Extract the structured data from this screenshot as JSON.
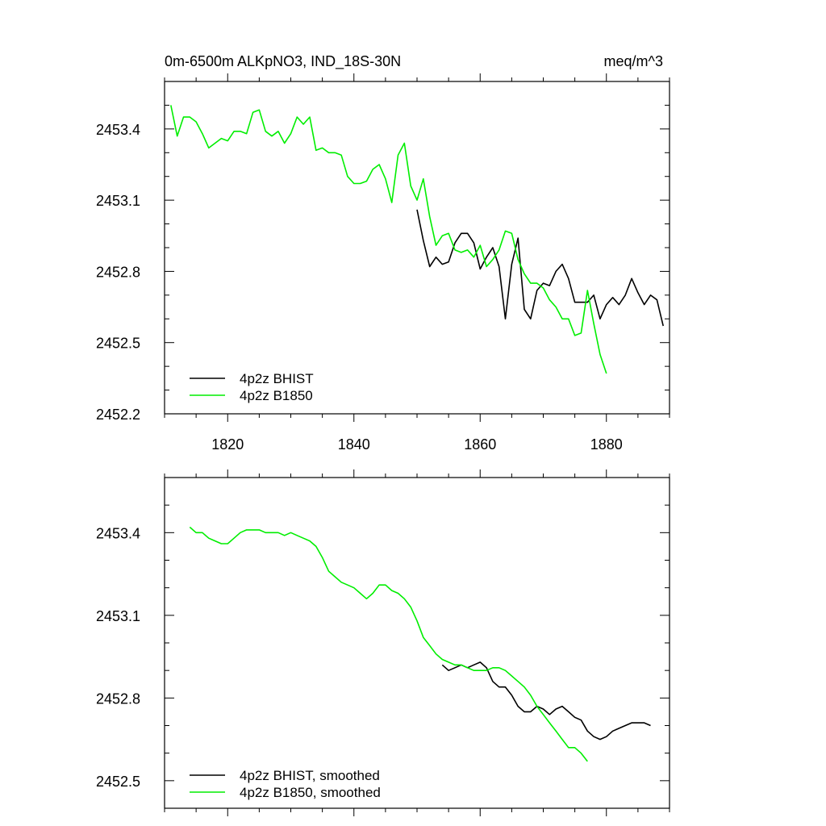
{
  "colors": {
    "bhist": "#000000",
    "b1850": "#00ee00"
  },
  "chart_data": [
    {
      "type": "line",
      "title": "0m-6500m ALKpNO3, IND_18S-30N",
      "units": "meq/m^3",
      "xlim": [
        1810,
        1890
      ],
      "ylim": [
        2452.2,
        2453.6
      ],
      "x_ticks": [
        1820,
        1840,
        1860,
        1880
      ],
      "x_tick_labels": [
        "1820",
        "1840",
        "1860",
        "1880"
      ],
      "y_ticks": [
        2452.2,
        2452.5,
        2452.8,
        2453.1,
        2453.4
      ],
      "y_tick_labels": [
        "2452.2",
        "2452.5",
        "2452.8",
        "2453.1",
        "2453.4"
      ],
      "legend_position": "bottom-left",
      "series": [
        {
          "name": "4p2z BHIST",
          "color": "#000000",
          "x": [
            1850,
            1851,
            1852,
            1853,
            1854,
            1855,
            1856,
            1857,
            1858,
            1859,
            1860,
            1861,
            1862,
            1863,
            1864,
            1865,
            1866,
            1867,
            1868,
            1869,
            1870,
            1871,
            1872,
            1873,
            1874,
            1875,
            1876,
            1877,
            1878,
            1879,
            1880,
            1881,
            1882,
            1883,
            1884,
            1885,
            1886,
            1887,
            1888,
            1889
          ],
          "y": [
            2453.06,
            2452.93,
            2452.82,
            2452.86,
            2452.83,
            2452.84,
            2452.92,
            2452.96,
            2452.96,
            2452.92,
            2452.81,
            2452.86,
            2452.9,
            2452.82,
            2452.6,
            2452.83,
            2452.94,
            2452.64,
            2452.6,
            2452.72,
            2452.75,
            2452.74,
            2452.8,
            2452.83,
            2452.77,
            2452.67,
            2452.67,
            2452.67,
            2452.7,
            2452.6,
            2452.66,
            2452.69,
            2452.66,
            2452.7,
            2452.77,
            2452.71,
            2452.66,
            2452.7,
            2452.68,
            2452.57
          ]
        },
        {
          "name": "4p2z B1850",
          "color": "#00ee00",
          "x": [
            1811,
            1812,
            1813,
            1814,
            1815,
            1816,
            1817,
            1818,
            1819,
            1820,
            1821,
            1822,
            1823,
            1824,
            1825,
            1826,
            1827,
            1828,
            1829,
            1830,
            1831,
            1832,
            1833,
            1834,
            1835,
            1836,
            1837,
            1838,
            1839,
            1840,
            1841,
            1842,
            1843,
            1844,
            1845,
            1846,
            1847,
            1848,
            1849,
            1850,
            1851,
            1852,
            1853,
            1854,
            1855,
            1856,
            1857,
            1858,
            1859,
            1860,
            1861,
            1862,
            1863,
            1864,
            1865,
            1866,
            1867,
            1868,
            1869,
            1870,
            1871,
            1872,
            1873,
            1874,
            1875,
            1876,
            1877,
            1878,
            1879,
            1880
          ],
          "y": [
            2453.5,
            2453.37,
            2453.45,
            2453.45,
            2453.43,
            2453.38,
            2453.32,
            2453.34,
            2453.36,
            2453.35,
            2453.39,
            2453.39,
            2453.38,
            2453.47,
            2453.48,
            2453.39,
            2453.37,
            2453.39,
            2453.34,
            2453.38,
            2453.45,
            2453.42,
            2453.45,
            2453.31,
            2453.32,
            2453.3,
            2453.3,
            2453.29,
            2453.2,
            2453.17,
            2453.17,
            2453.18,
            2453.23,
            2453.25,
            2453.19,
            2453.09,
            2453.29,
            2453.34,
            2453.16,
            2453.1,
            2453.19,
            2453.03,
            2452.91,
            2452.95,
            2452.96,
            2452.89,
            2452.88,
            2452.89,
            2452.86,
            2452.91,
            2452.82,
            2452.85,
            2452.89,
            2452.97,
            2452.96,
            2452.85,
            2452.79,
            2452.75,
            2452.75,
            2452.73,
            2452.68,
            2452.65,
            2452.6,
            2452.6,
            2452.53,
            2452.54,
            2452.72,
            2452.58,
            2452.45,
            2452.37
          ]
        }
      ]
    },
    {
      "type": "line",
      "title": "",
      "xlim": [
        1810,
        1890
      ],
      "ylim": [
        2452.4,
        2453.6
      ],
      "x_ticks": [
        1820,
        1840,
        1860,
        1880
      ],
      "y_ticks": [
        2452.5,
        2452.8,
        2453.1,
        2453.4
      ],
      "y_tick_labels": [
        "2452.5",
        "2452.8",
        "2453.1",
        "2453.4"
      ],
      "legend_position": "bottom-left",
      "series": [
        {
          "name": "4p2z BHIST, smoothed",
          "color": "#000000",
          "x": [
            1854,
            1855,
            1856,
            1857,
            1858,
            1859,
            1860,
            1861,
            1862,
            1863,
            1864,
            1865,
            1866,
            1867,
            1868,
            1869,
            1870,
            1871,
            1872,
            1873,
            1874,
            1875,
            1876,
            1877,
            1878,
            1879,
            1880,
            1881,
            1882,
            1883,
            1884,
            1885,
            1886,
            1887
          ],
          "y": [
            2452.92,
            2452.9,
            2452.91,
            2452.92,
            2452.91,
            2452.92,
            2452.93,
            2452.91,
            2452.86,
            2452.84,
            2452.84,
            2452.81,
            2452.77,
            2452.75,
            2452.75,
            2452.77,
            2452.76,
            2452.74,
            2452.76,
            2452.77,
            2452.75,
            2452.73,
            2452.72,
            2452.68,
            2452.66,
            2452.65,
            2452.66,
            2452.68,
            2452.69,
            2452.7,
            2452.71,
            2452.71,
            2452.71,
            2452.7
          ]
        },
        {
          "name": "4p2z B1850, smoothed",
          "color": "#00ee00",
          "x": [
            1814,
            1815,
            1816,
            1817,
            1818,
            1819,
            1820,
            1821,
            1822,
            1823,
            1824,
            1825,
            1826,
            1827,
            1828,
            1829,
            1830,
            1831,
            1832,
            1833,
            1834,
            1835,
            1836,
            1837,
            1838,
            1839,
            1840,
            1841,
            1842,
            1843,
            1844,
            1845,
            1846,
            1847,
            1848,
            1849,
            1850,
            1851,
            1852,
            1853,
            1854,
            1855,
            1856,
            1857,
            1858,
            1859,
            1860,
            1861,
            1862,
            1863,
            1864,
            1865,
            1866,
            1867,
            1868,
            1869,
            1870,
            1871,
            1872,
            1873,
            1874,
            1875,
            1876,
            1877
          ],
          "y": [
            2453.42,
            2453.4,
            2453.4,
            2453.38,
            2453.37,
            2453.36,
            2453.36,
            2453.38,
            2453.4,
            2453.41,
            2453.41,
            2453.41,
            2453.4,
            2453.4,
            2453.4,
            2453.39,
            2453.4,
            2453.39,
            2453.38,
            2453.37,
            2453.35,
            2453.31,
            2453.26,
            2453.24,
            2453.22,
            2453.21,
            2453.2,
            2453.18,
            2453.16,
            2453.18,
            2453.21,
            2453.21,
            2453.19,
            2453.18,
            2453.16,
            2453.13,
            2453.08,
            2453.02,
            2452.99,
            2452.96,
            2452.94,
            2452.93,
            2452.92,
            2452.92,
            2452.91,
            2452.9,
            2452.9,
            2452.9,
            2452.91,
            2452.91,
            2452.9,
            2452.88,
            2452.86,
            2452.84,
            2452.81,
            2452.77,
            2452.74,
            2452.71,
            2452.68,
            2452.65,
            2452.62,
            2452.62,
            2452.6,
            2452.57
          ]
        }
      ]
    }
  ]
}
